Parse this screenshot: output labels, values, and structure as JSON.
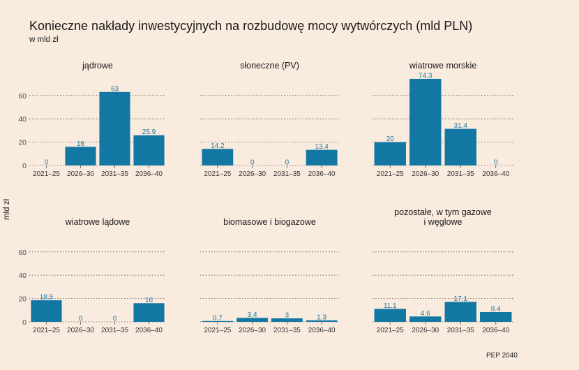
{
  "title": "Konieczne nakłady inwestycyjnych na rozbudowę mocy wytwórczych (mld PLN)",
  "subtitle": "w mld zł",
  "ylabel": "mld zł",
  "source": "PEP 2040",
  "colors": {
    "bar": "#1277a3",
    "label": "#1e78a0",
    "background": "#faebdf",
    "grid": "#555555"
  },
  "chart_data": {
    "type": "bar",
    "ylabel": "mld zł",
    "ylim": [
      0,
      75
    ],
    "yticks": [
      0,
      20,
      40,
      60
    ],
    "grid": "horizontal dotted",
    "categories": [
      "2021–25",
      "2026–30",
      "2031–35",
      "2036–40"
    ],
    "panels": [
      {
        "name": "jądrowe",
        "values": [
          0,
          16,
          63,
          25.9
        ],
        "labels": [
          "0",
          "16",
          "63",
          "25.9"
        ]
      },
      {
        "name": "słoneczne (PV)",
        "values": [
          14.2,
          0,
          0,
          13.4
        ],
        "labels": [
          "14.2",
          "0",
          "0",
          "13.4"
        ]
      },
      {
        "name": "wiatrowe morskie",
        "values": [
          20,
          74.3,
          31.4,
          0
        ],
        "labels": [
          "20",
          "74.3",
          "31.4",
          "0"
        ]
      },
      {
        "name": "wiatrowe lądowe",
        "values": [
          18.5,
          0,
          0,
          16
        ],
        "labels": [
          "18.5",
          "0",
          "0",
          "16"
        ]
      },
      {
        "name": "biomasowe i biogazowe",
        "values": [
          0.7,
          3.4,
          3,
          1.3
        ],
        "labels": [
          "0.7",
          "3.4",
          "3",
          "1.3"
        ]
      },
      {
        "name": "pozostałe, w tym gazowe\ni węglowe",
        "values": [
          11.1,
          4.6,
          17.1,
          8.4
        ],
        "labels": [
          "11.1",
          "4.6",
          "17.1",
          "8.4"
        ]
      }
    ]
  }
}
